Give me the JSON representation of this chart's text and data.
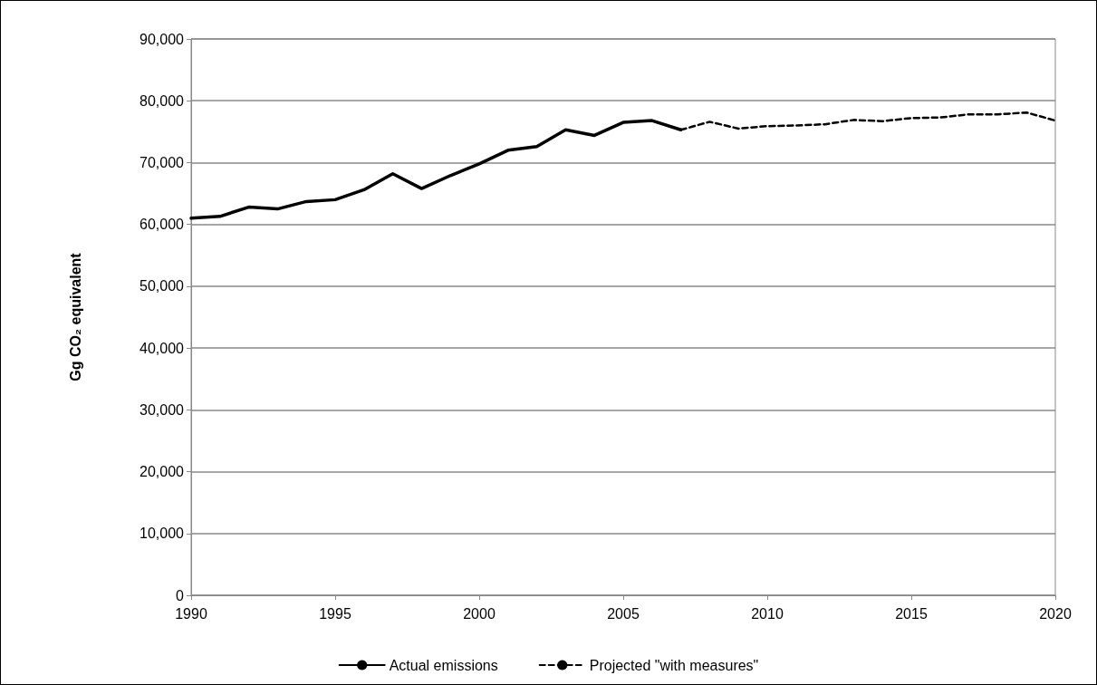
{
  "chart_data": {
    "type": "line",
    "ylabel": "Gg CO₂ equivalent",
    "xlim": [
      1990,
      2020
    ],
    "xticks": [
      1990,
      1995,
      2000,
      2005,
      2010,
      2015,
      2020
    ],
    "ylim": [
      0,
      90000
    ],
    "yticks": [
      0,
      {
        "value": 10000,
        "label": "10,000"
      },
      {
        "value": 20000,
        "label": "20,000"
      },
      {
        "value": 30000,
        "label": "30,000"
      },
      {
        "value": 40000,
        "label": "40,000"
      },
      {
        "value": 50000,
        "label": "50,000"
      },
      {
        "value": 60000,
        "label": "60,000"
      },
      {
        "value": 70000,
        "label": "70,000"
      },
      {
        "value": 80000,
        "label": "80,000"
      },
      {
        "value": 90000,
        "label": "90,000"
      }
    ],
    "grid": "y",
    "legend": "bottom",
    "marker": "none",
    "series": [
      {
        "name": "Actual emissions",
        "color": "#000000",
        "line_style": "solid",
        "x": [
          1990,
          1991,
          1992,
          1993,
          1994,
          1995,
          1996,
          1997,
          1998,
          1999,
          2000,
          2001,
          2002,
          2003,
          2004,
          2005,
          2006,
          2007
        ],
        "values": [
          61000,
          61300,
          62800,
          62500,
          63700,
          64000,
          65600,
          68200,
          65800,
          67900,
          69800,
          72000,
          72600,
          75300,
          74400,
          76500,
          76800,
          75300
        ]
      },
      {
        "name": "Projected \"with measures\"",
        "color": "#000000",
        "line_style": "dashed",
        "x": [
          2007,
          2008,
          2009,
          2010,
          2011,
          2012,
          2013,
          2014,
          2015,
          2016,
          2017,
          2018,
          2019,
          2020
        ],
        "values": [
          75300,
          76600,
          75500,
          75900,
          76000,
          76200,
          76900,
          76700,
          77200,
          77300,
          77800,
          77800,
          78100,
          76800
        ]
      }
    ]
  }
}
